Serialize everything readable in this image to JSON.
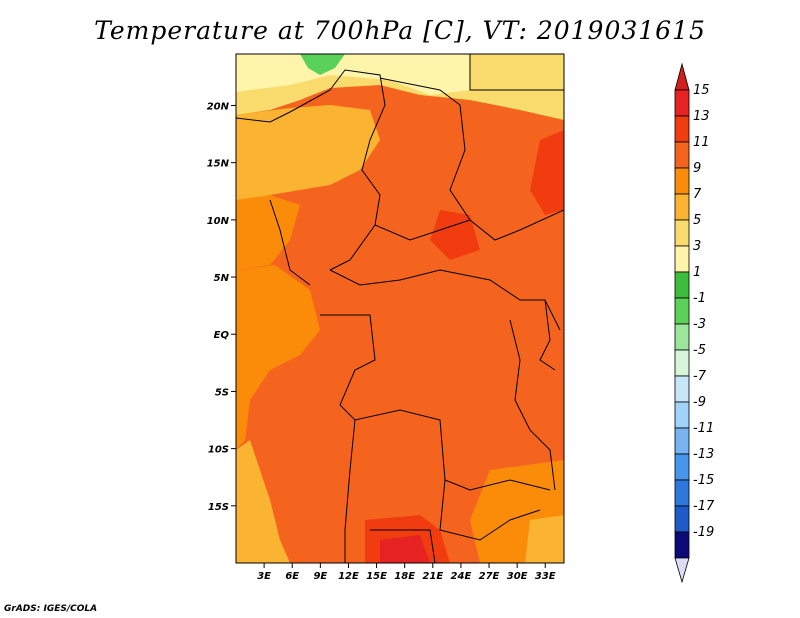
{
  "title": "Temperature at 700hPa [C], VT: 2019031615",
  "credit": "GrADS: IGES/COLA",
  "map": {
    "lat_labels": [
      {
        "lat": 20,
        "label": "20N"
      },
      {
        "lat": 15,
        "label": "15N"
      },
      {
        "lat": 10,
        "label": "10N"
      },
      {
        "lat": 5,
        "label": "5N"
      },
      {
        "lat": 0,
        "label": "EQ"
      },
      {
        "lat": -5,
        "label": "5S"
      },
      {
        "lat": -10,
        "label": "10S"
      },
      {
        "lat": -15,
        "label": "15S"
      }
    ],
    "lon_labels": [
      {
        "lon": 3,
        "label": "3E"
      },
      {
        "lon": 6,
        "label": "6E"
      },
      {
        "lon": 9,
        "label": "9E"
      },
      {
        "lon": 12,
        "label": "12E"
      },
      {
        "lon": 15,
        "label": "15E"
      },
      {
        "lon": 18,
        "label": "18E"
      },
      {
        "lon": 21,
        "label": "21E"
      },
      {
        "lon": 24,
        "label": "24E"
      },
      {
        "lon": 27,
        "label": "27E"
      },
      {
        "lon": 30,
        "label": "30E"
      },
      {
        "lon": 33,
        "label": "33E"
      }
    ],
    "lat_range": [
      -20,
      24.5
    ],
    "lon_range": [
      0,
      35
    ]
  },
  "colorbar": {
    "levels": [
      {
        "label": "15",
        "color": "#e62222"
      },
      {
        "label": "13",
        "color": "#f03c0f"
      },
      {
        "label": "11",
        "color": "#f5641e"
      },
      {
        "label": "9",
        "color": "#fa8c0a"
      },
      {
        "label": "7",
        "color": "#fab432"
      },
      {
        "label": "5",
        "color": "#fadc6e"
      },
      {
        "label": "3",
        "color": "#fff5aa"
      },
      {
        "label": "1",
        "color": "#3cbe3c"
      },
      {
        "label": "-1",
        "color": "#5ad25a"
      },
      {
        "label": "-3",
        "color": "#9be69b"
      },
      {
        "label": "-5",
        "color": "#d7f5d7"
      },
      {
        "label": "-7",
        "color": "#c8e6fa"
      },
      {
        "label": "-9",
        "color": "#a0d2fa"
      },
      {
        "label": "-11",
        "color": "#78b4f0"
      },
      {
        "label": "-13",
        "color": "#4696eb"
      },
      {
        "label": "-15",
        "color": "#2d78dc"
      },
      {
        "label": "-17",
        "color": "#1e5ac8"
      },
      {
        "label": "-19",
        "color": "#1432a0"
      }
    ],
    "top_color": "#d21e1e",
    "bottom_color": "#dcdcf5",
    "bottom_last_color": "#0a0a78"
  }
}
